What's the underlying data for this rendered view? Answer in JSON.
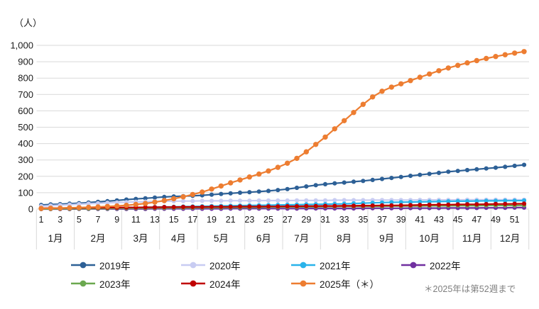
{
  "unit_label": "（人）",
  "footnote": "＊2025年は第52週まで",
  "chart_data": {
    "type": "line",
    "title": "",
    "ylabel": "（人）",
    "xlabel": "",
    "ylim": [
      0,
      1000
    ],
    "y_tick_step": 100,
    "y_tick_labels": [
      "0",
      "100",
      "200",
      "300",
      "400",
      "500",
      "600",
      "700",
      "800",
      "900",
      "1,000"
    ],
    "grid": true,
    "legend_position": "bottom",
    "x_unit": "week",
    "week_tick_labels": [
      1,
      3,
      5,
      7,
      9,
      11,
      13,
      15,
      17,
      19,
      21,
      23,
      25,
      27,
      29,
      31,
      33,
      35,
      37,
      39,
      41,
      43,
      45,
      47,
      49,
      51
    ],
    "month_groups": [
      {
        "label": "1月",
        "weeks": 4
      },
      {
        "label": "2月",
        "weeks": 5
      },
      {
        "label": "3月",
        "weeks": 4
      },
      {
        "label": "4月",
        "weeks": 4
      },
      {
        "label": "5月",
        "weeks": 5
      },
      {
        "label": "6月",
        "weeks": 4
      },
      {
        "label": "7月",
        "weeks": 4
      },
      {
        "label": "8月",
        "weeks": 5
      },
      {
        "label": "9月",
        "weeks": 4
      },
      {
        "label": "10月",
        "weeks": 5
      },
      {
        "label": "11月",
        "weeks": 4
      },
      {
        "label": "12月",
        "weeks": 4
      }
    ],
    "series": [
      {
        "name": "2019年",
        "color": "#2D6096",
        "values": [
          25,
          28,
          30,
          33,
          36,
          40,
          44,
          48,
          53,
          58,
          62,
          66,
          70,
          74,
          77,
          79,
          81,
          84,
          88,
          92,
          96,
          100,
          103,
          107,
          111,
          116,
          122,
          130,
          138,
          146,
          152,
          157,
          162,
          167,
          172,
          178,
          184,
          190,
          196,
          203,
          209,
          215,
          221,
          228,
          233,
          238,
          243,
          248,
          253,
          258,
          264,
          270
        ]
      },
      {
        "name": "2020年",
        "color": "#C8CCF2",
        "values": [
          18,
          21,
          24,
          27,
          30,
          33,
          35,
          38,
          40,
          42,
          44,
          45,
          47,
          48,
          48,
          49,
          49,
          50,
          50,
          50,
          51,
          51,
          51,
          52,
          52,
          52,
          52,
          53,
          53,
          53,
          53,
          54,
          54,
          54,
          54,
          55,
          55,
          55,
          55,
          55,
          56,
          56,
          56,
          56,
          56,
          57,
          57,
          57,
          57,
          57,
          57,
          57
        ]
      },
      {
        "name": "2021年",
        "color": "#29B3EA",
        "values": [
          2,
          3,
          3,
          4,
          4,
          5,
          6,
          7,
          8,
          9,
          10,
          11,
          12,
          13,
          14,
          15,
          16,
          17,
          18,
          19,
          20,
          21,
          22,
          23,
          24,
          25,
          26,
          27,
          28,
          29,
          30,
          31,
          32,
          34,
          36,
          38,
          40,
          41,
          42,
          43,
          44,
          45,
          46,
          47,
          48,
          48,
          49,
          50,
          50,
          51,
          51,
          52
        ]
      },
      {
        "name": "2022年",
        "color": "#7030A0",
        "values": [
          0,
          0,
          0,
          0,
          1,
          1,
          1,
          1,
          1,
          1,
          1,
          1,
          2,
          2,
          2,
          2,
          2,
          2,
          2,
          2,
          3,
          3,
          3,
          3,
          3,
          3,
          3,
          3,
          4,
          4,
          4,
          4,
          4,
          4,
          5,
          5,
          5,
          5,
          5,
          6,
          6,
          6,
          6,
          7,
          7,
          7,
          7,
          8,
          8,
          8,
          9,
          9
        ]
      },
      {
        "name": "2023年",
        "color": "#6BA84F",
        "values": [
          1,
          1,
          2,
          2,
          3,
          3,
          4,
          4,
          5,
          5,
          6,
          6,
          7,
          7,
          8,
          8,
          8,
          9,
          9,
          9,
          10,
          10,
          11,
          11,
          12,
          12,
          13,
          13,
          14,
          14,
          15,
          15,
          16,
          16,
          17,
          17,
          17,
          18,
          18,
          19,
          19,
          20,
          20,
          20,
          21,
          21,
          21,
          22,
          22,
          22,
          22,
          23
        ]
      },
      {
        "name": "2024年",
        "color": "#C00000",
        "values": [
          5,
          6,
          6,
          7,
          7,
          8,
          8,
          9,
          9,
          10,
          10,
          11,
          11,
          12,
          12,
          13,
          13,
          13,
          14,
          14,
          14,
          15,
          15,
          15,
          16,
          16,
          17,
          17,
          18,
          18,
          19,
          19,
          20,
          20,
          21,
          21,
          22,
          22,
          23,
          24,
          25,
          26,
          27,
          27,
          28,
          29,
          29,
          30,
          31,
          31,
          32,
          33
        ]
      },
      {
        "name": "2025年（＊）",
        "color": "#ED7D31",
        "values": [
          4,
          5,
          6,
          8,
          9,
          11,
          13,
          16,
          19,
          23,
          28,
          34,
          42,
          52,
          63,
          75,
          89,
          104,
          122,
          141,
          160,
          178,
          196,
          214,
          233,
          255,
          280,
          310,
          350,
          395,
          440,
          490,
          540,
          590,
          640,
          685,
          720,
          745,
          765,
          785,
          805,
          825,
          845,
          862,
          878,
          893,
          907,
          920,
          932,
          943,
          953,
          962
        ]
      }
    ]
  }
}
